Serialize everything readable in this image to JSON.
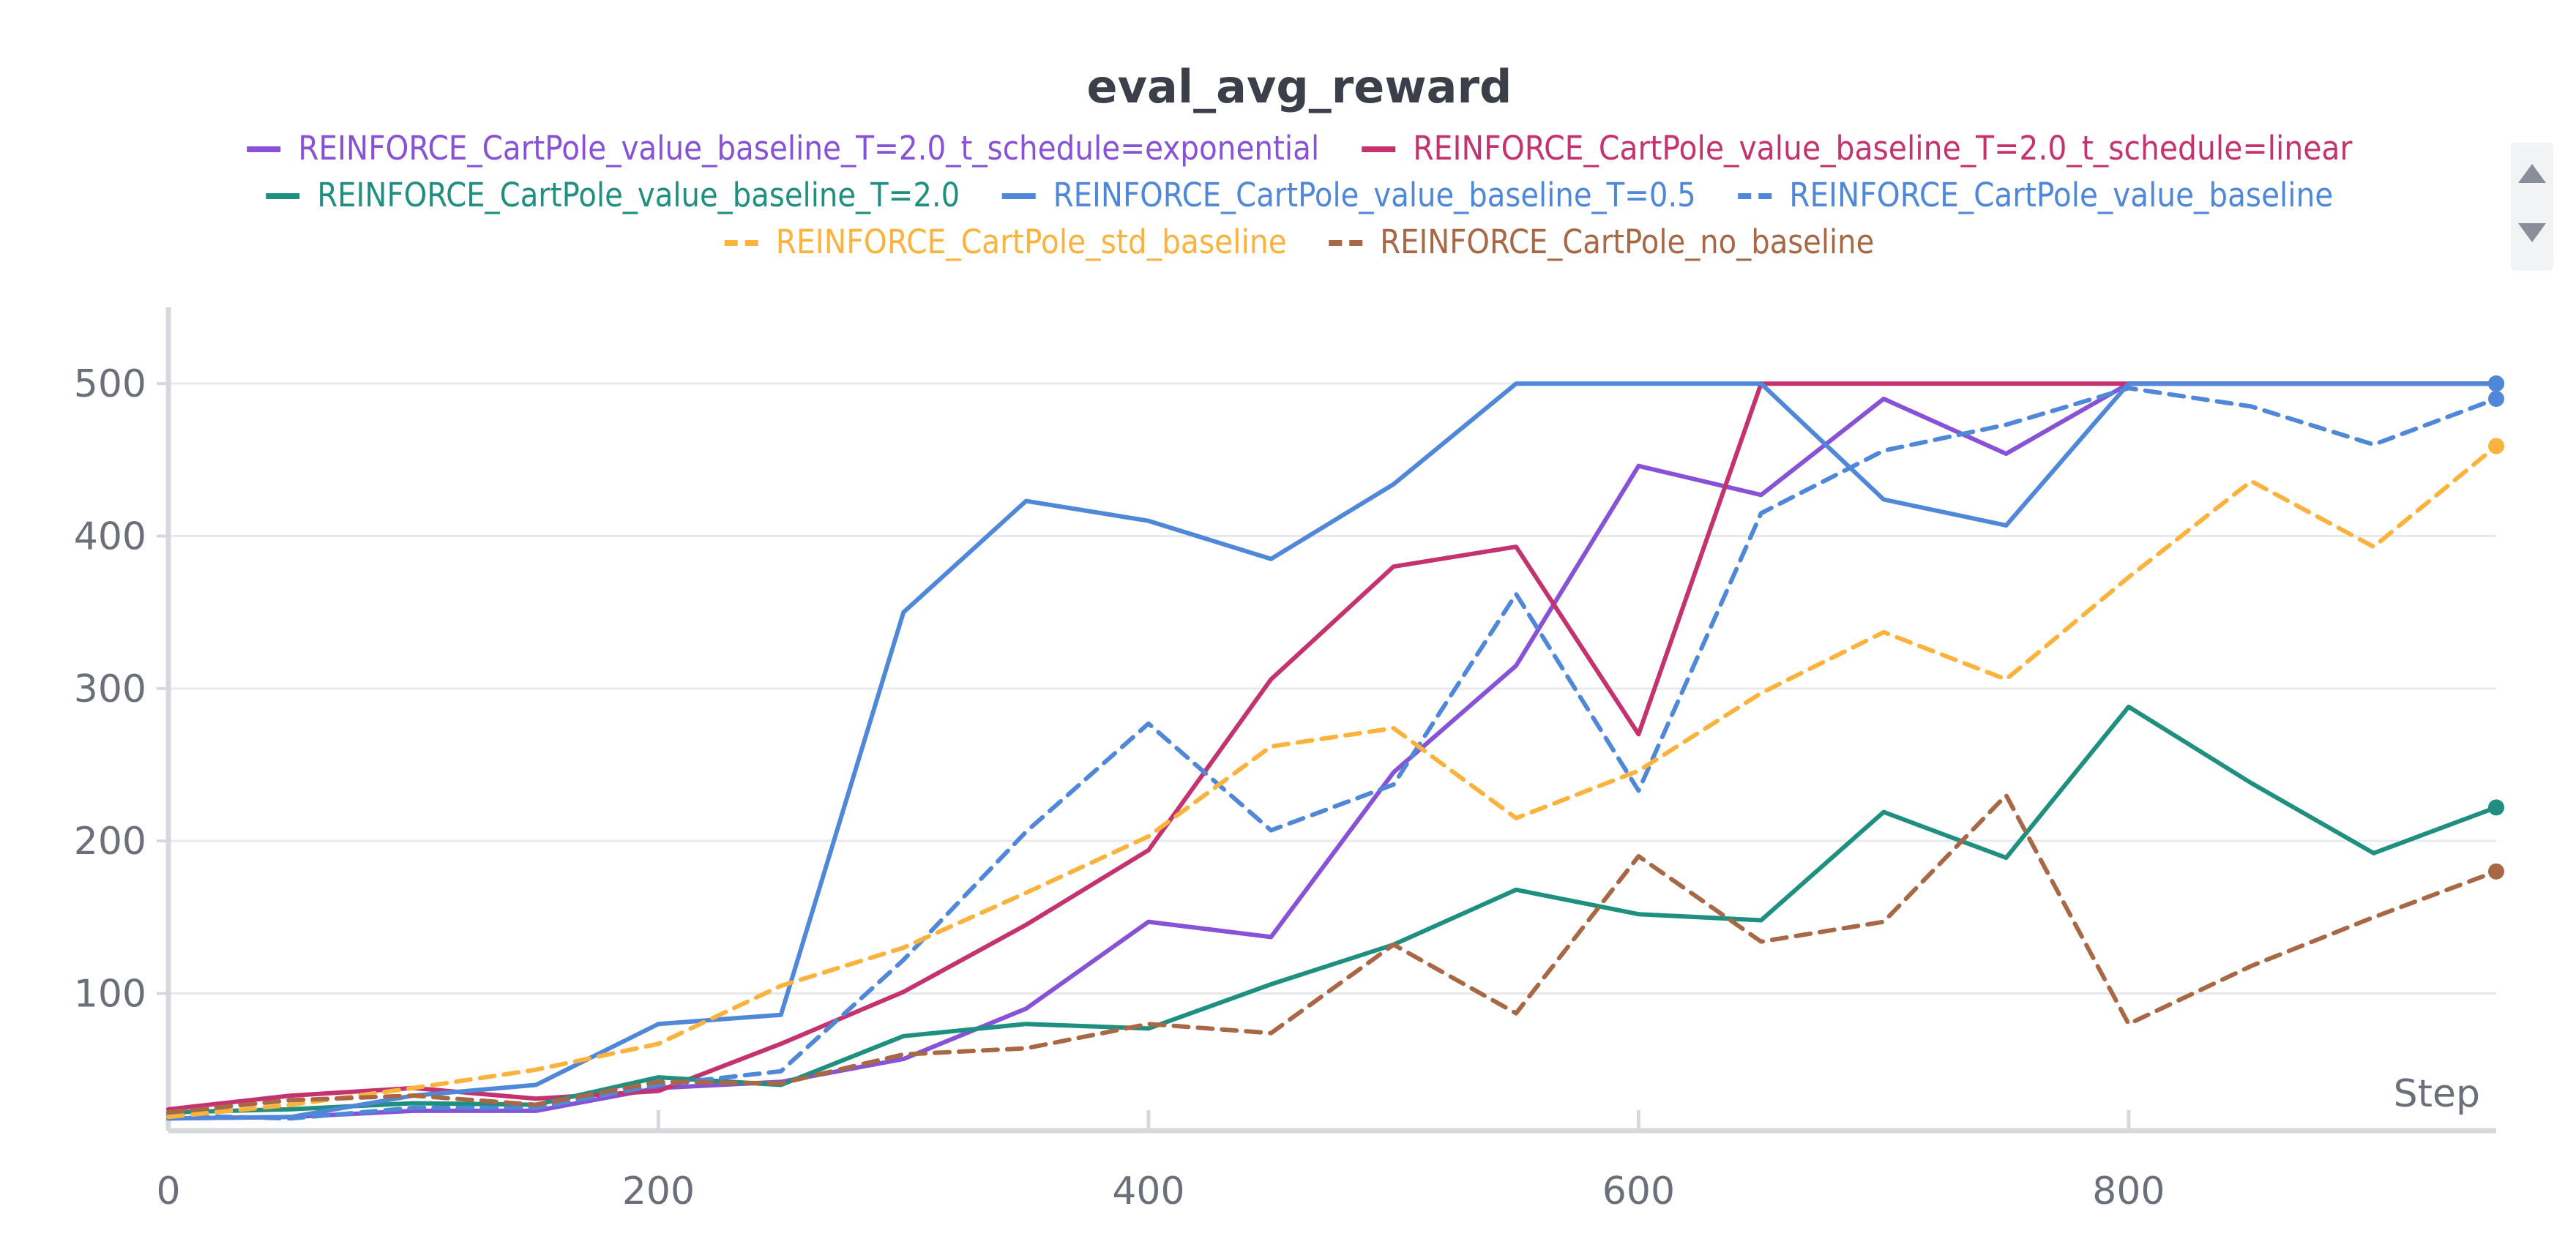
{
  "chart_data": {
    "type": "line",
    "title": "eval_avg_reward",
    "xlabel": "Step",
    "ylabel": "",
    "xlim": [
      0,
      950
    ],
    "ylim": [
      10,
      550
    ],
    "x_ticks": [
      0,
      200,
      400,
      600,
      800
    ],
    "y_ticks": [
      100,
      200,
      300,
      400,
      500
    ],
    "grid": true,
    "legend_position": "top",
    "series": [
      {
        "name": "REINFORCE_CartPole_value_baseline_T=2.0_t_schedule=exponential",
        "color": "#8752d5",
        "dash": "solid",
        "x": [
          0,
          50,
          100,
          150,
          200,
          250,
          300,
          350,
          400,
          450,
          500,
          550,
          600,
          650,
          700,
          750,
          800,
          850,
          900,
          950
        ],
        "y": [
          18,
          19,
          23,
          23,
          38,
          42,
          57,
          90,
          147,
          137,
          245,
          315,
          446,
          427,
          490,
          454,
          500,
          500,
          500,
          500
        ]
      },
      {
        "name": "REINFORCE_CartPole_value_baseline_T=2.0_t_schedule=linear",
        "color": "#c4336f",
        "dash": "solid",
        "x": [
          0,
          50,
          100,
          150,
          200,
          250,
          300,
          350,
          400,
          450,
          500,
          550,
          600,
          650,
          700,
          750,
          800,
          850,
          900,
          950
        ],
        "y": [
          24,
          33,
          38,
          31,
          36,
          67,
          101,
          145,
          194,
          306,
          380,
          393,
          270,
          500,
          500,
          500,
          500,
          500,
          500,
          500
        ]
      },
      {
        "name": "REINFORCE_CartPole_value_baseline_T=2.0",
        "color": "#1f8f80",
        "dash": "solid",
        "x": [
          0,
          50,
          100,
          150,
          200,
          250,
          300,
          350,
          400,
          450,
          500,
          550,
          600,
          650,
          700,
          750,
          800,
          850,
          900,
          950
        ],
        "y": [
          22,
          24,
          28,
          27,
          45,
          40,
          72,
          80,
          77,
          106,
          132,
          168,
          152,
          148,
          219,
          189,
          288,
          238,
          192,
          222
        ]
      },
      {
        "name": "REINFORCE_CartPole_value_baseline_T=0.5",
        "color": "#4f87d9",
        "dash": "solid",
        "x": [
          0,
          50,
          100,
          150,
          200,
          250,
          300,
          350,
          400,
          450,
          500,
          550,
          600,
          650,
          700,
          750,
          800,
          850,
          900,
          950
        ],
        "y": [
          18,
          19,
          33,
          40,
          80,
          86,
          350,
          423,
          410,
          385,
          434,
          500,
          500,
          500,
          424,
          407,
          500,
          500,
          500,
          500
        ]
      },
      {
        "name": "REINFORCE_CartPole_value_baseline",
        "color": "#4f87d9",
        "dash": "dashed",
        "x": [
          0,
          50,
          100,
          150,
          200,
          250,
          300,
          350,
          400,
          450,
          500,
          550,
          600,
          650,
          700,
          750,
          800,
          850,
          900,
          950
        ],
        "y": [
          20,
          18,
          25,
          25,
          40,
          49,
          122,
          206,
          277,
          207,
          237,
          362,
          233,
          415,
          456,
          473,
          497,
          485,
          460,
          490
        ]
      },
      {
        "name": "REINFORCE_CartPole_std_baseline",
        "color": "#fbb33e",
        "dash": "dashed",
        "x": [
          0,
          50,
          100,
          150,
          200,
          250,
          300,
          350,
          400,
          450,
          500,
          550,
          600,
          650,
          700,
          750,
          800,
          850,
          900,
          950
        ],
        "y": [
          19,
          27,
          38,
          50,
          67,
          105,
          130,
          166,
          203,
          262,
          274,
          215,
          246,
          297,
          337,
          306,
          373,
          436,
          393,
          459
        ]
      },
      {
        "name": "REINFORCE_CartPole_no_baseline",
        "color": "#a86845",
        "dash": "dashed",
        "x": [
          0,
          50,
          100,
          150,
          200,
          250,
          300,
          350,
          400,
          450,
          500,
          550,
          600,
          650,
          700,
          750,
          800,
          850,
          900,
          950
        ],
        "y": [
          22,
          30,
          33,
          27,
          42,
          41,
          60,
          64,
          80,
          74,
          132,
          87,
          190,
          134,
          147,
          230,
          80,
          118,
          150,
          180
        ]
      }
    ]
  },
  "controls": {
    "legend_scroll_up": "scroll-up",
    "legend_scroll_down": "scroll-down"
  }
}
